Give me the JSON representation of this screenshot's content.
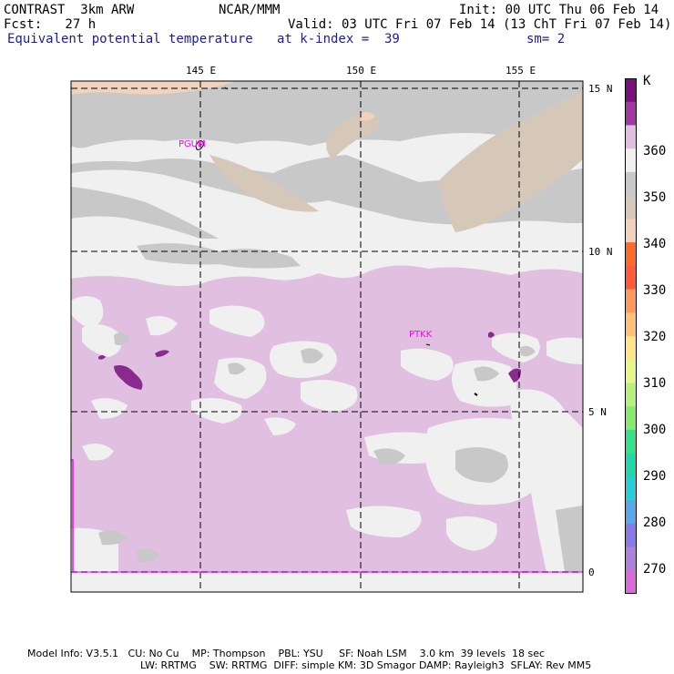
{
  "header": {
    "model": "CONTRAST  3km ARW",
    "center": "NCAR/MMM",
    "init": "Init: 00 UTC Thu 06 Feb 14",
    "fcst": "Fcst:   27 h",
    "valid": "Valid: 03 UTC Fri 07 Feb 14 (13 ChT Fri 07 Feb 14)",
    "field": "Equivalent potential temperature",
    "level": "at k-index =  39",
    "smooth": "sm= 2"
  },
  "map": {
    "lon_labels": [
      "145 E",
      "150 E",
      "155 E"
    ],
    "lat_labels": [
      "15 N",
      "10 N",
      "5 N",
      "0"
    ],
    "stations": [
      {
        "id": "PGUM"
      },
      {
        "id": "PTKK"
      }
    ],
    "colors": {
      "gray_dark": "#c8c8c8",
      "gray_light": "#f0f0f0",
      "pink_light": "#e1bfe0",
      "purple": "#8a2a8e",
      "tan": "#d6c8b8",
      "peach": "#f1d2bc",
      "magenta": "#ff00ff"
    }
  },
  "colorbar": {
    "unit": "K",
    "labels": [
      "360",
      "350",
      "340",
      "330",
      "320",
      "310",
      "300",
      "290",
      "280",
      "270"
    ],
    "colors": [
      "#7a0f7a",
      "#a03aa0",
      "#e1bfe0",
      "#f0f0f0",
      "#c8c8c8",
      "#d6c8b8",
      "#f1d2bc",
      "#fe6a2a",
      "#ff5a3c",
      "#ff9a5e",
      "#ffc07a",
      "#ffe58a",
      "#e7f48a",
      "#b6f080",
      "#88e870",
      "#36e088",
      "#22d6a8",
      "#2acdd6",
      "#5aa8e8",
      "#8a7ae6",
      "#b080dd",
      "#d86cd8"
    ]
  },
  "footer": {
    "line1": "Model Info: V3.5.1   CU: No Cu    MP: Thompson    PBL: YSU     SF: Noah LSM    3.0 km  39 levels  18 sec",
    "line2": "LW: RRTMG    SW: RRTMG  DIFF: simple KM: 3D Smagor DAMP: Rayleigh3  SFLAY: Rev MM5"
  }
}
